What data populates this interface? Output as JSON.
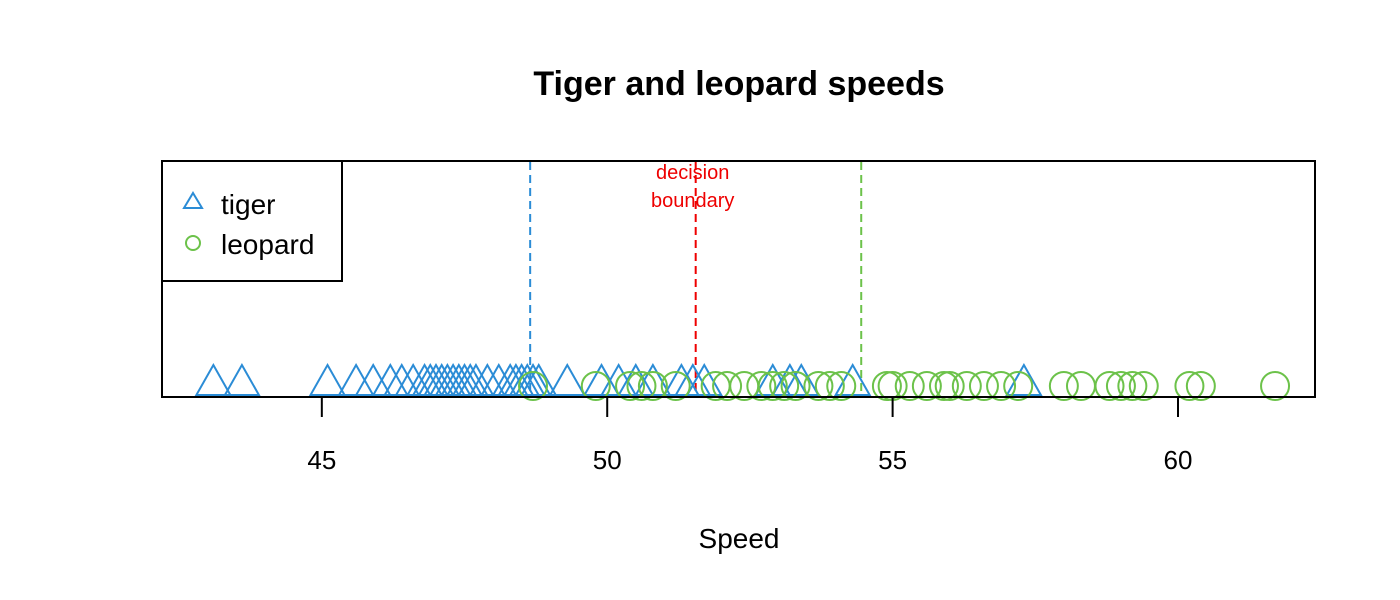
{
  "chart_data": {
    "type": "scatter",
    "title": "Tiger and leopard speeds",
    "xlabel": "Speed",
    "ylabel": "",
    "xlim": [
      42.2,
      62.4
    ],
    "x_ticks": [
      45,
      50,
      55,
      60
    ],
    "grid": false,
    "legend_position": "top-left",
    "series": [
      {
        "name": "tiger",
        "marker": "triangle",
        "color": "#2B8CD6",
        "mean": 48.65,
        "values": [
          43.1,
          43.6,
          45.1,
          45.6,
          45.9,
          46.2,
          46.4,
          46.6,
          46.8,
          46.9,
          47.0,
          47.1,
          47.2,
          47.3,
          47.4,
          47.5,
          47.6,
          47.7,
          47.9,
          48.1,
          48.3,
          48.4,
          48.5,
          48.6,
          48.7,
          48.8,
          49.3,
          49.9,
          50.2,
          50.5,
          50.8,
          51.3,
          51.5,
          51.7,
          52.9,
          53.2,
          53.4,
          54.3,
          57.3
        ]
      },
      {
        "name": "leopard",
        "marker": "circle",
        "color": "#6CC24A",
        "mean": 54.45,
        "values": [
          48.7,
          49.8,
          50.4,
          50.6,
          50.8,
          51.2,
          51.9,
          52.1,
          52.4,
          52.7,
          52.9,
          53.1,
          53.3,
          53.7,
          53.9,
          54.1,
          54.9,
          55.0,
          55.3,
          55.6,
          55.9,
          56.0,
          56.3,
          56.6,
          56.9,
          57.2,
          58.0,
          58.3,
          58.8,
          59.0,
          59.2,
          59.4,
          60.2,
          60.4,
          61.7
        ]
      }
    ],
    "decision_boundary": {
      "x": 51.55,
      "color": "#EE0000",
      "label_line1": "decision",
      "label_line2": "boundary"
    }
  }
}
